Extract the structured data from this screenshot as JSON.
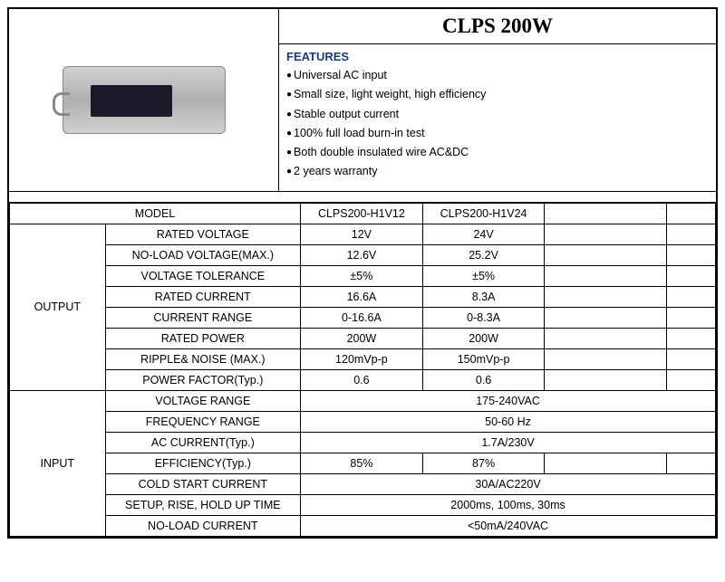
{
  "title": "CLPS  200W",
  "features_heading": "FEATURES",
  "features": [
    "Universal AC input",
    "Small size, light weight, high efficiency",
    "Stable output current",
    "100% full load burn-in test",
    "Both double insulated wire AC&DC",
    "2 years warranty"
  ],
  "model_label": "MODEL",
  "models": [
    "CLPS200-H1V12",
    "CLPS200-H1V24"
  ],
  "sections": {
    "output": {
      "label": "OUTPUT",
      "rows": [
        {
          "label": "RATED VOLTAGE",
          "v1": "12V",
          "v2": "24V"
        },
        {
          "label": "NO-LOAD VOLTAGE(MAX.)",
          "v1": "12.6V",
          "v2": "25.2V"
        },
        {
          "label": "VOLTAGE TOLERANCE",
          "v1": "±5%",
          "v2": "±5%"
        },
        {
          "label": "RATED CURRENT",
          "v1": "16.6A",
          "v2": "8.3A"
        },
        {
          "label": "CURRENT RANGE",
          "v1": "0-16.6A",
          "v2": "0-8.3A"
        },
        {
          "label": "RATED POWER",
          "v1": "200W",
          "v2": "200W"
        },
        {
          "label": "RIPPLE& NOISE (MAX.)",
          "v1": "120mVp-p",
          "v2": "150mVp-p"
        },
        {
          "label": "POWER FACTOR(Typ.)",
          "v1": "0.6",
          "v2": "0.6"
        }
      ]
    },
    "input": {
      "label": "INPUT",
      "rows": [
        {
          "label": "VOLTAGE RANGE",
          "merged": "175-240VAC"
        },
        {
          "label": "FREQUENCY RANGE",
          "merged": "50-60 Hz"
        },
        {
          "label": "AC CURRENT(Typ.)",
          "merged": "1.7A/230V"
        },
        {
          "label": "EFFICIENCY(Typ.)",
          "v1": "85%",
          "v2": "87%"
        },
        {
          "label": "COLD START CURRENT",
          "merged": "30A/AC220V"
        },
        {
          "label": "SETUP, RISE, HOLD UP TIME",
          "merged": "2000ms, 100ms, 30ms"
        },
        {
          "label": "NO-LOAD CURRENT",
          "merged": "<50mA/240VAC"
        }
      ]
    }
  },
  "colors": {
    "border": "#000000",
    "heading": "#1a3a7a",
    "text": "#000000",
    "background": "#ffffff"
  },
  "fonts": {
    "title_size": 23,
    "heading_size": 13,
    "body_size": 12.5
  }
}
